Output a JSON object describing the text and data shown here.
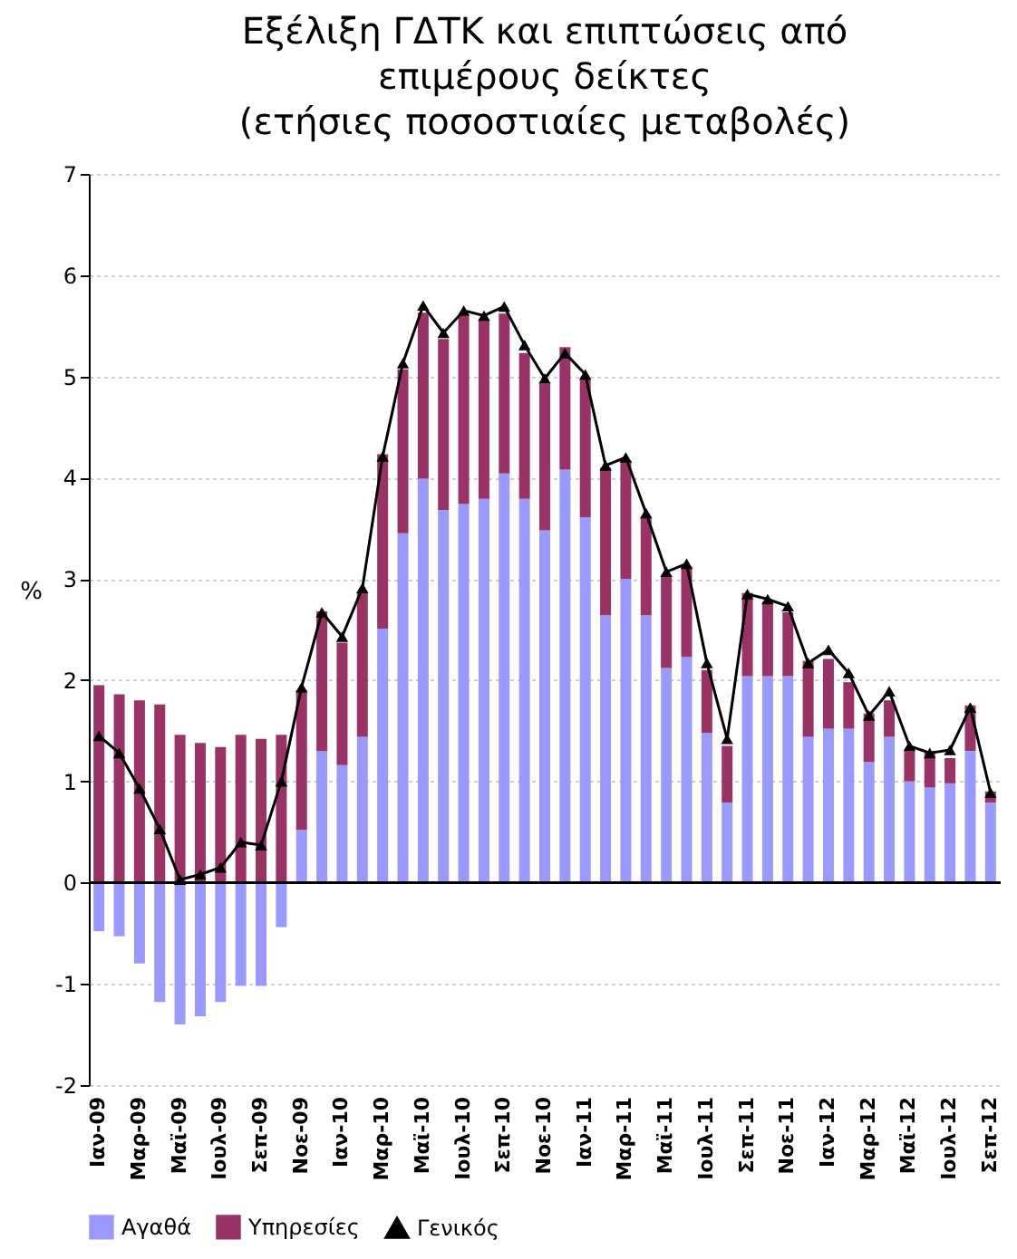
{
  "chart_data": {
    "type": "bar",
    "title": "Εξέλιξη ΓΔΤΚ και επιπτώσεις από επιμέρους δείκτες",
    "subtitle": "(ετήσιες ποσοστιαίες μεταβολές)",
    "ylabel": "%",
    "categories": [
      "Ιαν-09",
      null,
      "Μαρ-09",
      null,
      "Μαϊ-09",
      null,
      "Ιουλ-09",
      null,
      "Σεπ-09",
      null,
      "Νοε-09",
      null,
      "Ιαν-10",
      null,
      "Μαρ-10",
      null,
      "Μαϊ-10",
      null,
      "Ιουλ-10",
      null,
      "Σεπ-10",
      null,
      "Νοε-10",
      null,
      "Ιαν-11",
      null,
      "Μαρ-11",
      null,
      "Μαϊ-11",
      null,
      "Ιουλ-11",
      null,
      "Σεπ-11",
      null,
      "Νοε-11",
      null,
      "Ιαν-12",
      null,
      "Μαρ-12",
      null,
      "Μαϊ-12",
      null,
      "Ιουλ-12",
      null,
      "Σεπ-12"
    ],
    "stacked": true,
    "series": [
      {
        "name": "Αγαθά",
        "color": "#9999ff",
        "values": [
          -0.48,
          -0.53,
          -0.8,
          -1.18,
          -1.4,
          -1.32,
          -1.18,
          -1.02,
          -1.02,
          -0.44,
          0.52,
          1.3,
          1.16,
          1.44,
          2.51,
          3.45,
          3.99,
          3.68,
          3.74,
          3.79,
          4.04,
          3.79,
          3.48,
          4.08,
          3.61,
          2.64,
          3.0,
          2.64,
          2.12,
          2.23,
          1.48,
          0.79,
          2.04,
          2.04,
          2.04,
          1.44,
          1.52,
          1.52,
          1.19,
          1.44,
          1.0,
          0.94,
          0.98,
          1.3,
          0.79
        ]
      },
      {
        "name": "Υπηρεσίες",
        "color": "#993366",
        "values": [
          1.95,
          1.86,
          1.8,
          1.76,
          1.46,
          1.38,
          1.34,
          1.46,
          1.42,
          1.46,
          1.38,
          1.38,
          1.21,
          1.43,
          1.72,
          1.62,
          1.64,
          1.69,
          1.86,
          1.76,
          1.58,
          1.44,
          1.45,
          1.21,
          1.36,
          1.46,
          1.17,
          0.96,
          0.91,
          0.89,
          0.62,
          0.56,
          0.82,
          0.73,
          0.63,
          0.75,
          0.69,
          0.46,
          0.48,
          0.36,
          0.3,
          0.36,
          0.25,
          0.45,
          0.11
        ]
      },
      {
        "name": "Γενικός",
        "type": "line",
        "color": "#000000",
        "marker": "triangle",
        "values": [
          1.45,
          1.28,
          0.93,
          0.53,
          0.03,
          0.08,
          0.15,
          0.4,
          0.37,
          1.0,
          1.93,
          2.67,
          2.43,
          2.91,
          4.21,
          5.13,
          5.7,
          5.43,
          5.65,
          5.6,
          5.69,
          5.31,
          4.98,
          5.23,
          5.02,
          4.12,
          4.2,
          3.65,
          3.07,
          3.15,
          2.17,
          1.42,
          2.85,
          2.8,
          2.73,
          2.17,
          2.3,
          2.07,
          1.65,
          1.89,
          1.35,
          1.28,
          1.31,
          1.73,
          0.89
        ]
      }
    ],
    "ylim": [
      -2,
      7
    ],
    "yticks": [
      -2,
      -1,
      0,
      1,
      2,
      3,
      4,
      5,
      6,
      7
    ],
    "grid": "y",
    "legend": "bottom"
  }
}
